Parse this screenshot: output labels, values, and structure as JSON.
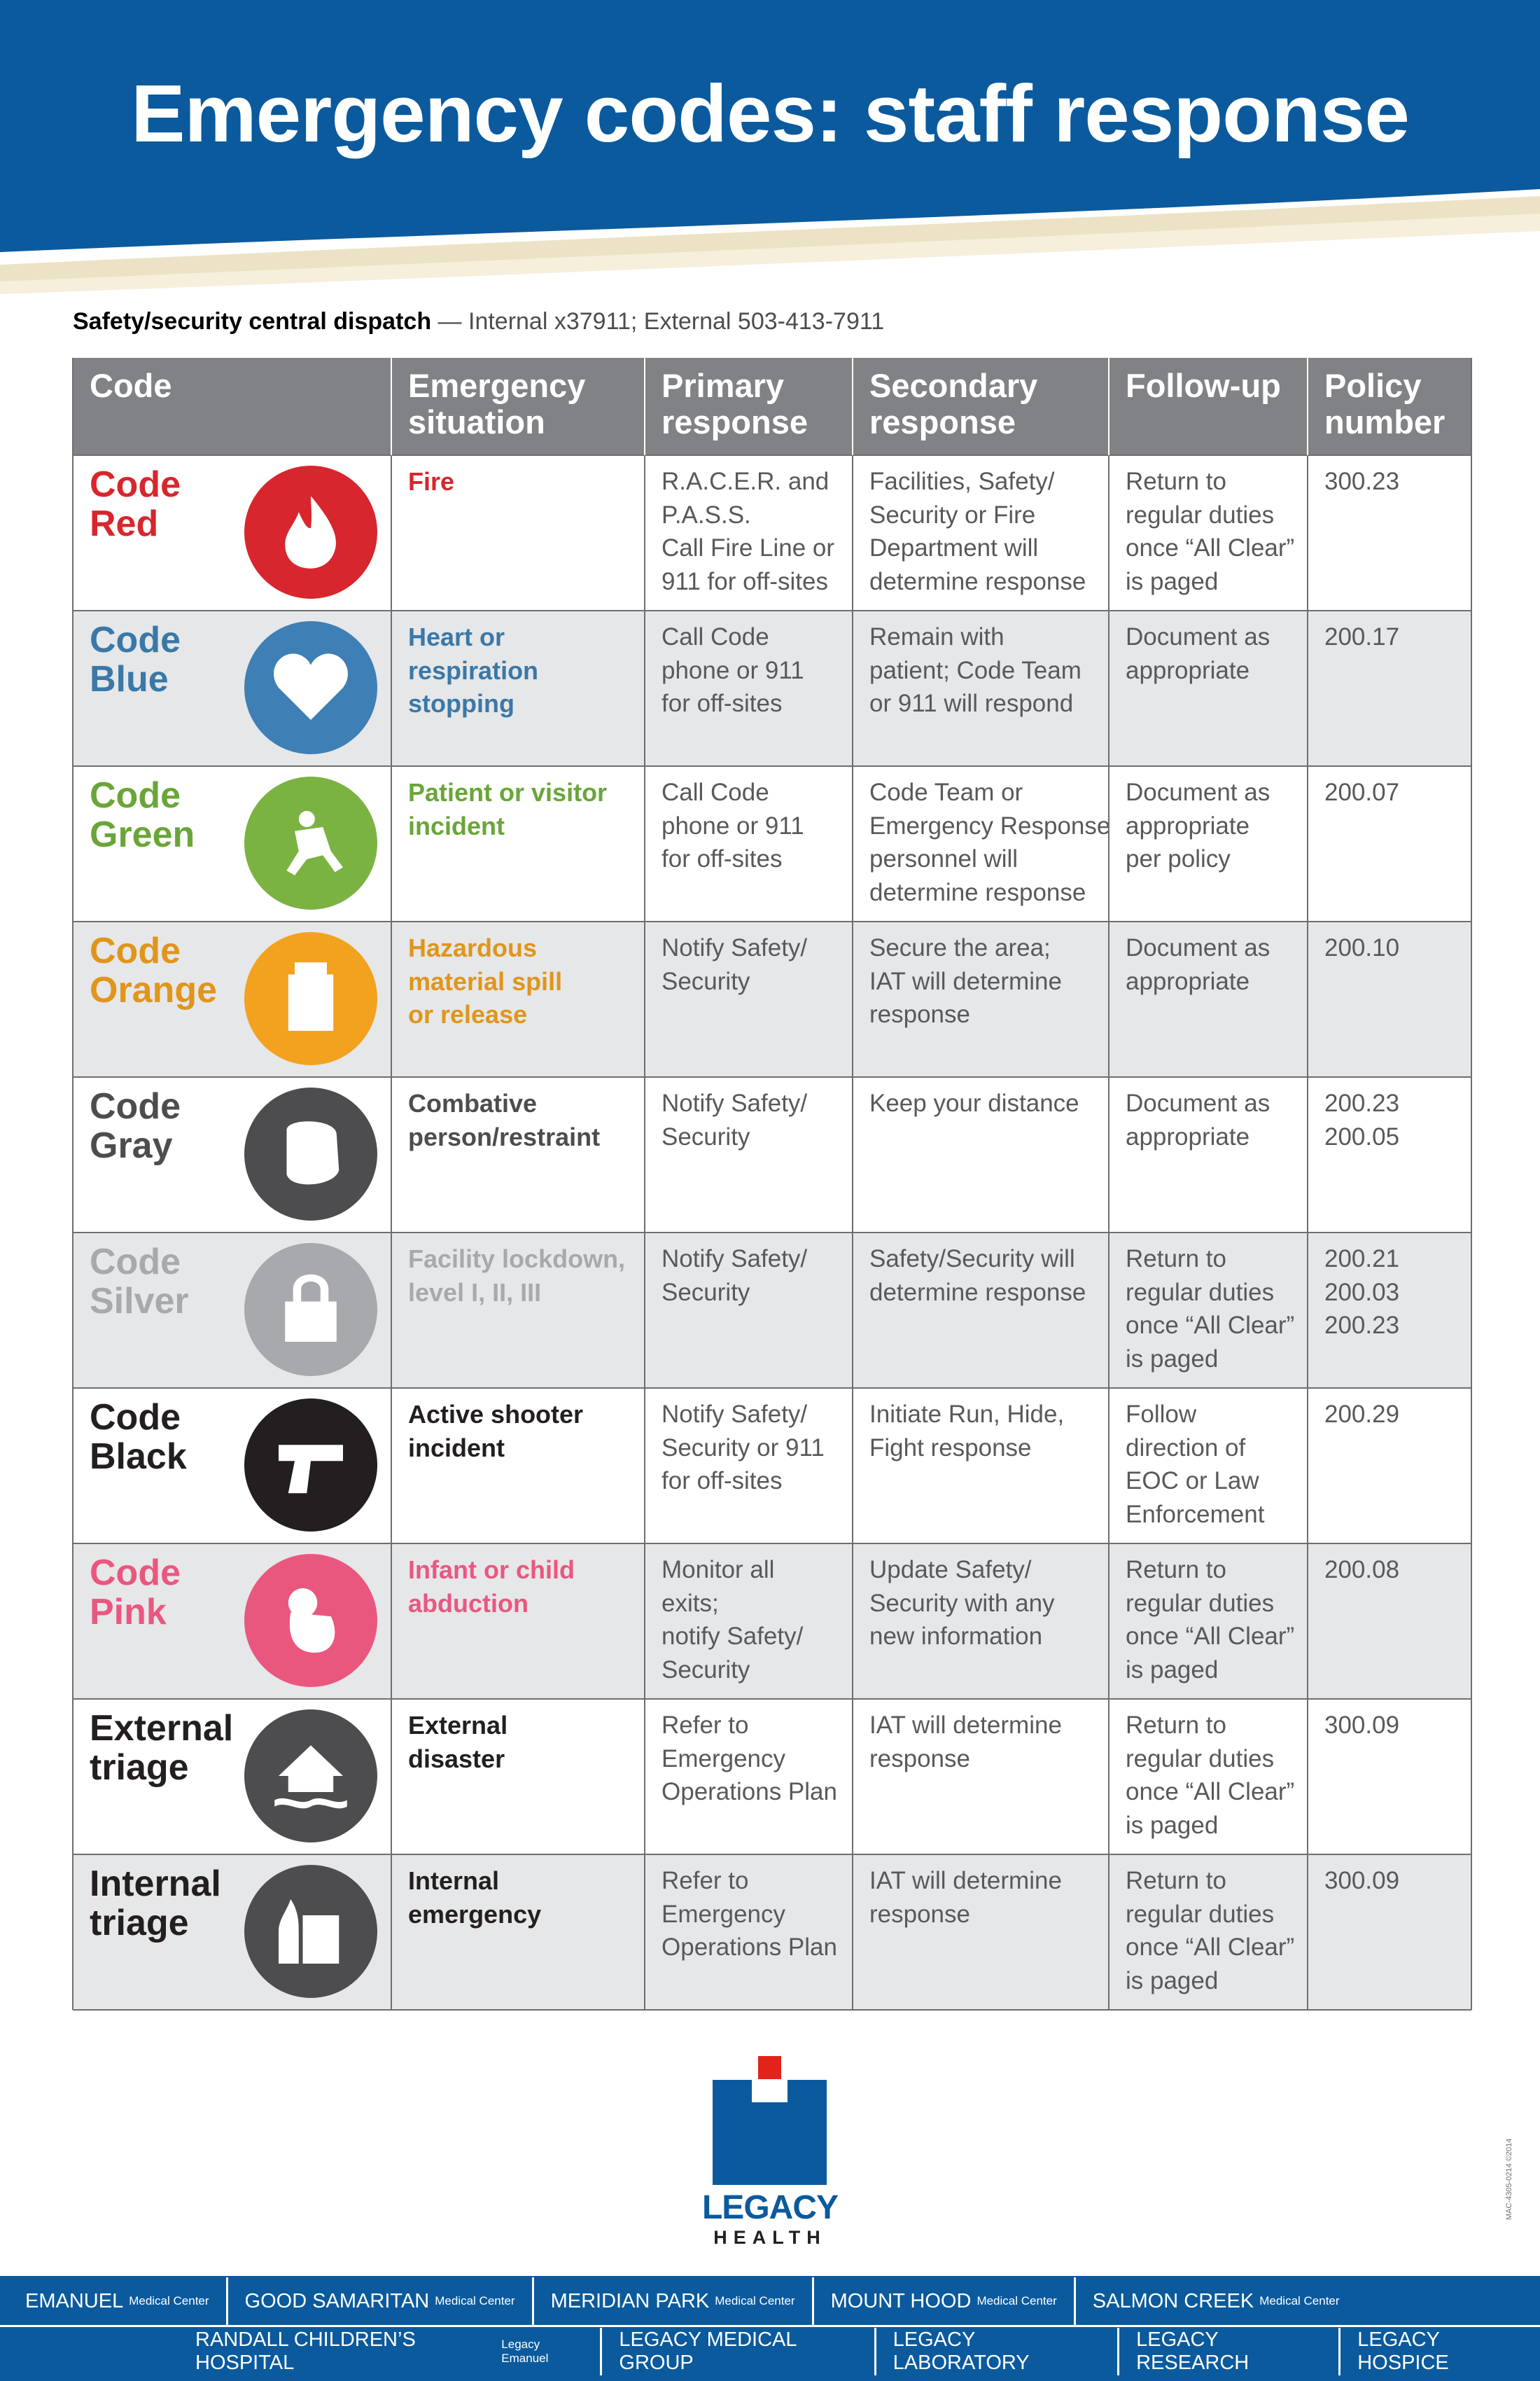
{
  "header": {
    "title": "Emergency codes: staff response"
  },
  "dispatch": {
    "label": "Safety/security central dispatch",
    "text": "— Internal x37911;  External 503-413-7911"
  },
  "table": {
    "columns": [
      [
        "Code"
      ],
      [
        "Emergency",
        "situation"
      ],
      [
        "Primary",
        "response"
      ],
      [
        "Secondary",
        "response"
      ],
      [
        "Follow-up"
      ],
      [
        "Policy",
        "number"
      ]
    ],
    "rows": [
      {
        "code": [
          "Code",
          "Red"
        ],
        "color": "#d7262d",
        "icon_color": "#d7262d",
        "situation": [
          "Fire"
        ],
        "primary": [
          "R.A.C.E.R. and",
          "P.A.S.S.",
          "Call Fire Line or",
          "911 for off-sites"
        ],
        "secondary": [
          "Facilities, Safety/",
          "Security or Fire",
          "Department will",
          "determine response"
        ],
        "followup": [
          "Return to",
          "regular duties",
          "once “All Clear”",
          "is paged"
        ],
        "policy": [
          "300.23"
        ]
      },
      {
        "code": [
          "Code",
          "Blue"
        ],
        "color": "#3a78a8",
        "icon_color": "#3e7fb5",
        "situation": [
          "Heart or",
          "respiration",
          "stopping"
        ],
        "primary": [
          "Call Code",
          "phone or 911",
          "for off-sites"
        ],
        "secondary": [
          "Remain with",
          "patient; Code Team",
          "or 911 will respond"
        ],
        "followup": [
          "Document as",
          "appropriate"
        ],
        "policy": [
          "200.17"
        ]
      },
      {
        "code": [
          "Code",
          "Green"
        ],
        "color": "#6aa539",
        "icon_color": "#7ab342",
        "situation": [
          "Patient or visitor",
          "incident"
        ],
        "primary": [
          "Call Code",
          "phone or 911",
          "for off-sites"
        ],
        "secondary": [
          "Code Team or",
          "Emergency Response",
          "personnel will",
          "determine response"
        ],
        "followup": [
          "Document as",
          "appropriate",
          "per policy"
        ],
        "policy": [
          "200.07"
        ]
      },
      {
        "code": [
          "Code",
          "Orange"
        ],
        "color": "#e0951b",
        "icon_color": "#f2a21f",
        "situation": [
          "Hazardous",
          "material spill",
          "or release"
        ],
        "primary": [
          "Notify Safety/",
          "Security"
        ],
        "secondary": [
          "Secure the area;",
          "IAT will determine",
          "response"
        ],
        "followup": [
          "Document as",
          "appropriate"
        ],
        "policy": [
          "200.10"
        ]
      },
      {
        "code": [
          "Code",
          "Gray"
        ],
        "color": "#4d4d4f",
        "icon_color": "#4d4d4f",
        "situation": [
          "Combative",
          "person/restraint"
        ],
        "primary": [
          "Notify Safety/",
          "Security"
        ],
        "secondary": [
          "Keep your distance"
        ],
        "followup": [
          "Document as",
          "appropriate"
        ],
        "policy": [
          "200.23",
          "200.05"
        ]
      },
      {
        "code": [
          "Code",
          "Silver"
        ],
        "color": "#a7a9ac",
        "icon_color": "#a7a9ac",
        "situation": [
          "Facility lockdown,",
          "level I, II, III"
        ],
        "primary": [
          "Notify Safety/",
          "Security"
        ],
        "secondary": [
          "Safety/Security will",
          "determine response"
        ],
        "followup": [
          "Return to",
          "regular duties",
          "once “All Clear”",
          "is paged"
        ],
        "policy": [
          "200.21",
          "200.03",
          "200.23"
        ]
      },
      {
        "code": [
          "Code",
          "Black"
        ],
        "color": "#231f20",
        "icon_color": "#231f20",
        "situation": [
          "Active shooter",
          "incident"
        ],
        "primary": [
          "Notify Safety/",
          "Security or 911",
          "for off-sites"
        ],
        "secondary": [
          "Initiate Run, Hide,",
          "Fight response"
        ],
        "followup": [
          "Follow",
          "direction of",
          "EOC or Law",
          "Enforcement"
        ],
        "policy": [
          "200.29"
        ]
      },
      {
        "code": [
          "Code",
          "Pink"
        ],
        "color": "#e9577f",
        "icon_color": "#e9577f",
        "situation": [
          "Infant or child",
          "abduction"
        ],
        "primary": [
          "Monitor all",
          "exits;",
          "notify Safety/",
          "Security"
        ],
        "secondary": [
          "Update Safety/",
          "Security with any",
          "new information"
        ],
        "followup": [
          "Return to",
          "regular duties",
          "once “All Clear”",
          "is paged"
        ],
        "policy": [
          "200.08"
        ]
      },
      {
        "code": [
          "External",
          "triage"
        ],
        "color": "#231f20",
        "icon_color": "#4d4d4f",
        "situation": [
          "External",
          "disaster"
        ],
        "primary": [
          "Refer to",
          "Emergency",
          "Operations Plan"
        ],
        "secondary": [
          "IAT will determine",
          "response"
        ],
        "followup": [
          "Return to",
          "regular duties",
          "once “All Clear”",
          "is paged"
        ],
        "policy": [
          "300.09"
        ]
      },
      {
        "code": [
          "Internal",
          "triage"
        ],
        "color": "#231f20",
        "icon_color": "#4d4d4f",
        "situation": [
          "Internal",
          "emergency"
        ],
        "primary": [
          "Refer to",
          "Emergency",
          "Operations Plan"
        ],
        "secondary": [
          "IAT will determine",
          "response"
        ],
        "followup": [
          "Return to",
          "regular duties",
          "once “All Clear”",
          "is paged"
        ],
        "policy": [
          "300.09"
        ]
      }
    ]
  },
  "logo": {
    "name": "LEGACY",
    "sub": "HEALTH"
  },
  "note": "MAC-4305-0214 ©2014",
  "footer": {
    "rows": [
      [
        {
          "name": "EMANUEL",
          "sub": "Medical Center"
        },
        {
          "name": "GOOD SAMARITAN",
          "sub": "Medical Center"
        },
        {
          "name": "MERIDIAN PARK",
          "sub": "Medical Center"
        },
        {
          "name": "MOUNT HOOD",
          "sub": "Medical Center"
        },
        {
          "name": "SALMON CREEK",
          "sub": "Medical Center"
        }
      ],
      [
        {
          "name": "RANDALL CHILDREN’S HOSPITAL",
          "sub": "Legacy Emanuel"
        },
        {
          "name": "LEGACY MEDICAL GROUP"
        },
        {
          "name": "LEGACY LABORATORY"
        },
        {
          "name": "LEGACY RESEARCH"
        },
        {
          "name": "LEGACY HOSPICE"
        }
      ]
    ]
  }
}
